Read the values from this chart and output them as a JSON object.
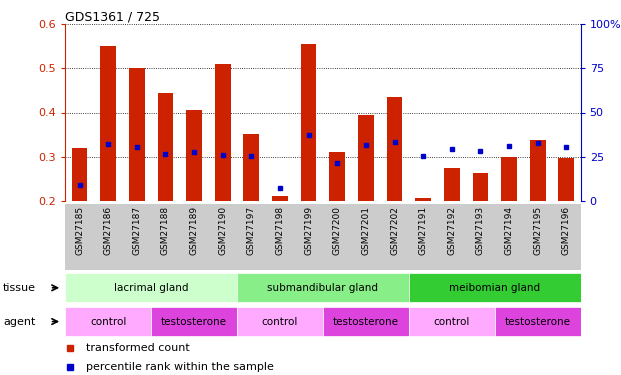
{
  "title": "GDS1361 / 725",
  "samples": [
    "GSM27185",
    "GSM27186",
    "GSM27187",
    "GSM27188",
    "GSM27189",
    "GSM27190",
    "GSM27197",
    "GSM27198",
    "GSM27199",
    "GSM27200",
    "GSM27201",
    "GSM27202",
    "GSM27191",
    "GSM27192",
    "GSM27193",
    "GSM27194",
    "GSM27195",
    "GSM27196"
  ],
  "red_values": [
    0.32,
    0.55,
    0.5,
    0.445,
    0.405,
    0.51,
    0.352,
    0.21,
    0.555,
    0.31,
    0.395,
    0.435,
    0.205,
    0.275,
    0.262,
    0.3,
    0.337,
    0.297
  ],
  "blue_values": [
    0.235,
    0.328,
    0.322,
    0.305,
    0.31,
    0.303,
    0.302,
    0.228,
    0.348,
    0.286,
    0.327,
    0.332,
    0.302,
    0.318,
    0.312,
    0.325,
    0.33,
    0.322
  ],
  "ylim_left": [
    0.2,
    0.6
  ],
  "ylim_right": [
    0,
    100
  ],
  "yticks_left": [
    0.2,
    0.3,
    0.4,
    0.5,
    0.6
  ],
  "yticks_right": [
    0,
    25,
    50,
    75,
    100
  ],
  "tissue_groups": [
    {
      "label": "lacrimal gland",
      "start": 0,
      "end": 6,
      "color": "#ccffcc"
    },
    {
      "label": "submandibular gland",
      "start": 6,
      "end": 12,
      "color": "#88ee88"
    },
    {
      "label": "meibomian gland",
      "start": 12,
      "end": 18,
      "color": "#33cc33"
    }
  ],
  "agent_groups": [
    {
      "label": "control",
      "start": 0,
      "end": 3,
      "color": "#ffaaff"
    },
    {
      "label": "testosterone",
      "start": 3,
      "end": 6,
      "color": "#dd44dd"
    },
    {
      "label": "control",
      "start": 6,
      "end": 9,
      "color": "#ffaaff"
    },
    {
      "label": "testosterone",
      "start": 9,
      "end": 12,
      "color": "#dd44dd"
    },
    {
      "label": "control",
      "start": 12,
      "end": 15,
      "color": "#ffaaff"
    },
    {
      "label": "testosterone",
      "start": 15,
      "end": 18,
      "color": "#dd44dd"
    }
  ],
  "bar_color": "#cc2200",
  "dot_color": "#0000cc",
  "bar_width": 0.55,
  "background_color": "#ffffff",
  "label_color_left": "#cc2200",
  "label_color_right": "#0000cc",
  "label_bg": "#cccccc"
}
